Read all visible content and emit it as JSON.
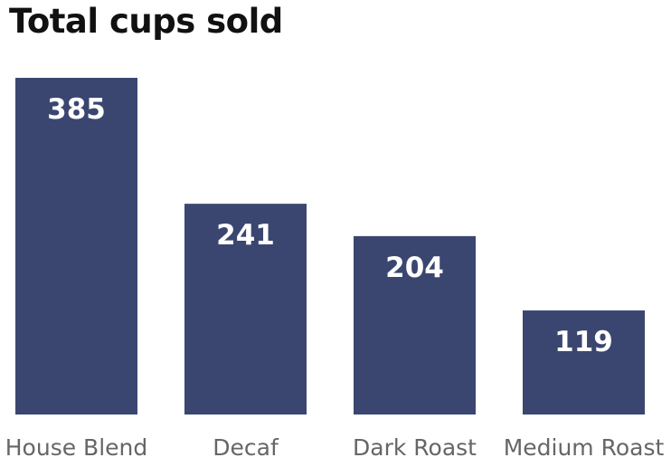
{
  "chart_data": {
    "type": "bar",
    "title": "Total cups sold",
    "categories": [
      "House Blend",
      "Decaf",
      "Dark Roast",
      "Medium Roast"
    ],
    "values": [
      385,
      241,
      204,
      119
    ],
    "data_labels": [
      "385",
      "241",
      "204",
      "119"
    ],
    "xlabel": "",
    "ylabel": "",
    "ylim": [
      0,
      385
    ],
    "grid": false,
    "legend": "none",
    "bar_color": "#3b4670",
    "label_color": "#ffffff",
    "category_label_color": "#666666"
  }
}
